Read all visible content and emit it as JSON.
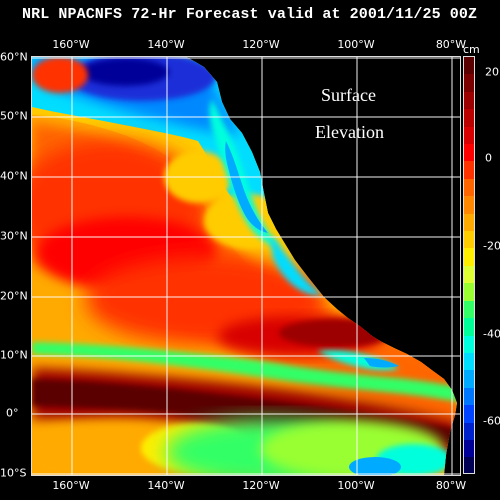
{
  "title": "NRL NPACNFS 72-Hr Forecast valid at 2001/11/25 00Z",
  "overlay": {
    "line1": "Surface",
    "line2": "Elevation"
  },
  "axes": {
    "lon_labels": [
      "160°W",
      "140°W",
      "120°W",
      "100°W",
      "80°W"
    ],
    "lat_labels": [
      "60°N",
      "50°N",
      "40°N",
      "30°N",
      "20°N",
      "10°N",
      "0°",
      "10°S"
    ]
  },
  "colorbar": {
    "unit": "cm",
    "labels": [
      "20",
      "0",
      "-20",
      "-40",
      "-60"
    ],
    "colors": [
      "#5a0000",
      "#7a0000",
      "#9c0000",
      "#bb0000",
      "#d80000",
      "#ff0000",
      "#ff3300",
      "#ff6600",
      "#ff8800",
      "#ffaa00",
      "#ffcc00",
      "#ffee00",
      "#ddff33",
      "#99ff33",
      "#33ff66",
      "#00ff99",
      "#00ffdd",
      "#00ddff",
      "#00aaff",
      "#0077ff",
      "#0044ff",
      "#0022cc",
      "#000099",
      "#000055"
    ]
  },
  "legend_palette": {
    "land": "#000000",
    "grid": "#ffffff"
  }
}
